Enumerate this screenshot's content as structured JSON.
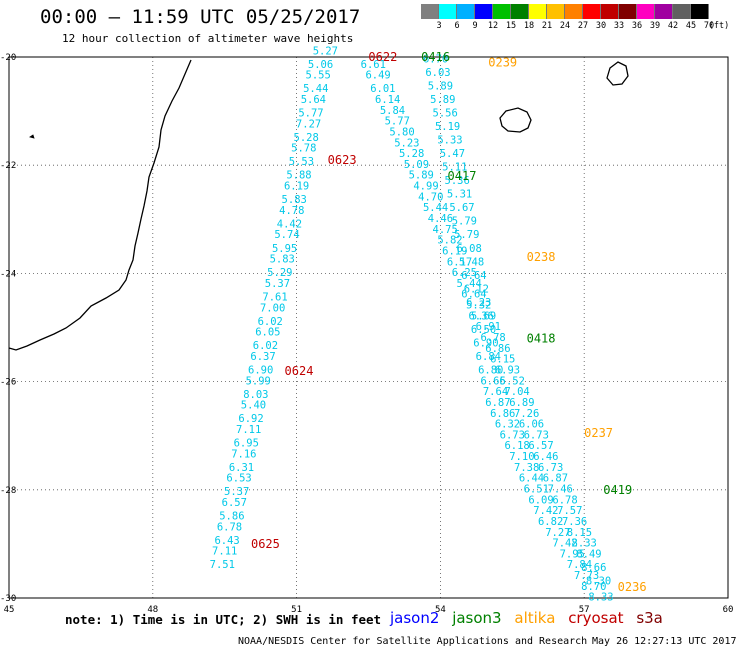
{
  "title": "00:00 – 11:59 UTC 05/25/2017",
  "subtitle": "12 hour collection of altimeter wave heights",
  "legend": {
    "colors": [
      "#808080",
      "#00ffff",
      "#00b0ff",
      "#0000ff",
      "#00c000",
      "#008000",
      "#ffff00",
      "#ffc000",
      "#ff8000",
      "#ff0000",
      "#c00000",
      "#800000",
      "#ff00c0",
      "#a000a0",
      "#606060",
      "#000000"
    ],
    "labels": [
      "3",
      "6",
      "9",
      "12",
      "15",
      "18",
      "21",
      "24",
      "27",
      "30",
      "33",
      "36",
      "39",
      "42",
      "45",
      "70",
      "(ft)"
    ]
  },
  "axes": {
    "lon_ticks": [
      "45",
      "48",
      "51",
      "54",
      "57",
      "60"
    ],
    "lat_ticks": [
      "-20",
      "-22",
      "-24",
      "-26",
      "-28",
      "-30"
    ]
  },
  "colors": {
    "swh_text": "#00c8e8",
    "jason2": "#0000ff",
    "jason3": "#008000",
    "altika": "#ffa000",
    "cryosat": "#c00000",
    "s3a": "#800000",
    "coast": "#000000"
  },
  "tracks": [
    {
      "mission": "cryosat",
      "times": [
        {
          "label": "0622",
          "lon": 52.8,
          "lat": -20.0
        },
        {
          "label": "0623",
          "lon": 51.95,
          "lat": -21.9
        },
        {
          "label": "0624",
          "lon": 51.05,
          "lat": -25.8
        },
        {
          "label": "0625",
          "lon": 50.35,
          "lat": -29.0
        }
      ],
      "points": [
        {
          "lon": 51.6,
          "lat": -19.95,
          "v": "5.27"
        },
        {
          "lon": 51.5,
          "lat": -20.2,
          "v": "5.06"
        },
        {
          "lon": 51.45,
          "lat": -20.4,
          "v": "5.55"
        },
        {
          "lon": 51.4,
          "lat": -20.65,
          "v": "5.44"
        },
        {
          "lon": 51.35,
          "lat": -20.85,
          "v": "5.64"
        },
        {
          "lon": 51.3,
          "lat": -21.1,
          "v": "5.77"
        },
        {
          "lon": 51.25,
          "lat": -21.3,
          "v": "7.27"
        },
        {
          "lon": 51.2,
          "lat": -21.55,
          "v": "5.28"
        },
        {
          "lon": 51.15,
          "lat": -21.75,
          "v": "5.78"
        },
        {
          "lon": 51.1,
          "lat": -22.0,
          "v": "5.53"
        },
        {
          "lon": 51.05,
          "lat": -22.25,
          "v": "5.88"
        },
        {
          "lon": 51.0,
          "lat": -22.45,
          "v": "6.19"
        },
        {
          "lon": 50.95,
          "lat": -22.7,
          "v": "5.83"
        },
        {
          "lon": 50.9,
          "lat": -22.9,
          "v": "4.78"
        },
        {
          "lon": 50.85,
          "lat": -23.15,
          "v": "4.42"
        },
        {
          "lon": 50.8,
          "lat": -23.35,
          "v": "5.74"
        },
        {
          "lon": 50.75,
          "lat": -23.6,
          "v": "5.95"
        },
        {
          "lon": 50.7,
          "lat": -23.8,
          "v": "5.83"
        },
        {
          "lon": 50.65,
          "lat": -24.05,
          "v": "5.29"
        },
        {
          "lon": 50.6,
          "lat": -24.25,
          "v": "5.37"
        },
        {
          "lon": 50.55,
          "lat": -24.5,
          "v": "7.61"
        },
        {
          "lon": 50.5,
          "lat": -24.7,
          "v": "7.00"
        },
        {
          "lon": 50.45,
          "lat": -24.95,
          "v": "6.02"
        },
        {
          "lon": 50.4,
          "lat": -25.15,
          "v": "6.05"
        },
        {
          "lon": 50.35,
          "lat": -25.4,
          "v": "6.02"
        },
        {
          "lon": 50.3,
          "lat": -25.6,
          "v": "6.37"
        },
        {
          "lon": 50.25,
          "lat": -25.85,
          "v": "6.90"
        },
        {
          "lon": 50.2,
          "lat": -26.05,
          "v": "5.99"
        },
        {
          "lon": 50.15,
          "lat": -26.3,
          "v": "8.03"
        },
        {
          "lon": 50.1,
          "lat": -26.5,
          "v": "5.40"
        },
        {
          "lon": 50.05,
          "lat": -26.75,
          "v": "6.92"
        },
        {
          "lon": 50.0,
          "lat": -26.95,
          "v": "7.11"
        },
        {
          "lon": 49.95,
          "lat": -27.2,
          "v": "6.95"
        },
        {
          "lon": 49.9,
          "lat": -27.4,
          "v": "7.16"
        },
        {
          "lon": 49.85,
          "lat": -27.65,
          "v": "6.31"
        },
        {
          "lon": 49.8,
          "lat": -27.85,
          "v": "6.53"
        },
        {
          "lon": 49.75,
          "lat": -28.1,
          "v": "5.37"
        },
        {
          "lon": 49.7,
          "lat": -28.3,
          "v": "6.57"
        },
        {
          "lon": 49.65,
          "lat": -28.55,
          "v": "5.86"
        },
        {
          "lon": 49.6,
          "lat": -28.75,
          "v": "6.78"
        },
        {
          "lon": 49.55,
          "lat": -29.0,
          "v": "6.43"
        },
        {
          "lon": 49.5,
          "lat": -29.2,
          "v": "7.11"
        },
        {
          "lon": 49.45,
          "lat": -29.45,
          "v": "7.51"
        }
      ]
    },
    {
      "mission": "jason3",
      "times": [
        {
          "label": "0416",
          "lon": 53.9,
          "lat": -20.0
        },
        {
          "label": "0417",
          "lon": 54.45,
          "lat": -22.2
        },
        {
          "label": "0418",
          "lon": 56.1,
          "lat": -25.2
        },
        {
          "label": "0419",
          "lon": 57.7,
          "lat": -28.0
        }
      ],
      "points": [
        {
          "lon": 52.6,
          "lat": -20.2,
          "v": "6.61"
        },
        {
          "lon": 52.7,
          "lat": -20.4,
          "v": "6.49"
        },
        {
          "lon": 52.8,
          "lat": -20.65,
          "v": "6.01"
        },
        {
          "lon": 52.9,
          "lat": -20.85,
          "v": "6.14"
        },
        {
          "lon": 53.0,
          "lat": -21.05,
          "v": "5.84"
        },
        {
          "lon": 53.1,
          "lat": -21.25,
          "v": "5.77"
        },
        {
          "lon": 53.2,
          "lat": -21.45,
          "v": "5.80"
        },
        {
          "lon": 53.3,
          "lat": -21.65,
          "v": "5.23"
        },
        {
          "lon": 53.4,
          "lat": -21.85,
          "v": "5.28"
        },
        {
          "lon": 53.5,
          "lat": -22.05,
          "v": "5.09"
        },
        {
          "lon": 53.6,
          "lat": -22.25,
          "v": "5.89"
        },
        {
          "lon": 53.7,
          "lat": -22.45,
          "v": "4.99"
        },
        {
          "lon": 53.8,
          "lat": -22.65,
          "v": "4.70"
        },
        {
          "lon": 53.9,
          "lat": -22.85,
          "v": "5.44"
        },
        {
          "lon": 54.0,
          "lat": -23.05,
          "v": "4.46"
        },
        {
          "lon": 54.1,
          "lat": -23.25,
          "v": "4.75"
        },
        {
          "lon": 54.2,
          "lat": -23.45,
          "v": "5.82"
        },
        {
          "lon": 54.3,
          "lat": -23.65,
          "v": "6.19"
        },
        {
          "lon": 54.4,
          "lat": -23.85,
          "v": "6.17"
        },
        {
          "lon": 54.5,
          "lat": -24.05,
          "v": "6.25"
        },
        {
          "lon": 54.6,
          "lat": -24.25,
          "v": "5.44"
        },
        {
          "lon": 54.7,
          "lat": -24.45,
          "v": "6.64"
        },
        {
          "lon": 54.8,
          "lat": -24.65,
          "v": "5.32"
        },
        {
          "lon": 54.9,
          "lat": -24.85,
          "v": "5.69"
        },
        {
          "lon": 55.0,
          "lat": -25.05,
          "v": "6.91"
        },
        {
          "lon": 55.1,
          "lat": -25.25,
          "v": "6.78"
        },
        {
          "lon": 55.2,
          "lat": -25.45,
          "v": "6.86"
        },
        {
          "lon": 55.3,
          "lat": -25.65,
          "v": "6.15"
        },
        {
          "lon": 55.4,
          "lat": -25.85,
          "v": "6.93"
        },
        {
          "lon": 55.5,
          "lat": -26.05,
          "v": "5.52"
        },
        {
          "lon": 55.6,
          "lat": -26.25,
          "v": "7.04"
        },
        {
          "lon": 55.7,
          "lat": -26.45,
          "v": "6.89"
        },
        {
          "lon": 55.8,
          "lat": -26.65,
          "v": "7.26"
        },
        {
          "lon": 55.9,
          "lat": -26.85,
          "v": "6.06"
        },
        {
          "lon": 56.0,
          "lat": -27.05,
          "v": "6.73"
        },
        {
          "lon": 56.1,
          "lat": -27.25,
          "v": "6.57"
        },
        {
          "lon": 56.2,
          "lat": -27.45,
          "v": "6.46"
        },
        {
          "lon": 56.3,
          "lat": -27.65,
          "v": "6.73"
        },
        {
          "lon": 56.4,
          "lat": -27.85,
          "v": "6.87"
        },
        {
          "lon": 56.5,
          "lat": -28.05,
          "v": "7.46"
        },
        {
          "lon": 56.6,
          "lat": -28.25,
          "v": "6.78"
        },
        {
          "lon": 56.7,
          "lat": -28.45,
          "v": "7.57"
        },
        {
          "lon": 56.8,
          "lat": -28.65,
          "v": "7.36"
        },
        {
          "lon": 56.9,
          "lat": -28.85,
          "v": "8.15"
        },
        {
          "lon": 57.0,
          "lat": -29.05,
          "v": "8.33"
        },
        {
          "lon": 57.1,
          "lat": -29.25,
          "v": "8.49"
        },
        {
          "lon": 57.2,
          "lat": -29.5,
          "v": "8.66"
        },
        {
          "lon": 57.3,
          "lat": -29.75,
          "v": "8.30"
        }
      ]
    },
    {
      "mission": "altika",
      "times": [
        {
          "label": "0239",
          "lon": 55.3,
          "lat": -20.1
        },
        {
          "label": "0238",
          "lon": 56.1,
          "lat": -23.7
        },
        {
          "label": "0237",
          "lon": 57.3,
          "lat": -26.95
        },
        {
          "label": "0236",
          "lon": 58.0,
          "lat": -29.8
        }
      ],
      "points": [
        {
          "lon": 53.9,
          "lat": -20.1,
          "v": "6.70"
        },
        {
          "lon": 53.95,
          "lat": -20.35,
          "v": "6.03"
        },
        {
          "lon": 54.0,
          "lat": -20.6,
          "v": "5.89"
        },
        {
          "lon": 54.05,
          "lat": -20.85,
          "v": "5.89"
        },
        {
          "lon": 54.1,
          "lat": -21.1,
          "v": "5.56"
        },
        {
          "lon": 54.15,
          "lat": -21.35,
          "v": "5.19"
        },
        {
          "lon": 54.2,
          "lat": -21.6,
          "v": "5.33"
        },
        {
          "lon": 54.25,
          "lat": -21.85,
          "v": "5.47"
        },
        {
          "lon": 54.3,
          "lat": -22.1,
          "v": "5.11"
        },
        {
          "lon": 54.35,
          "lat": -22.35,
          "v": "5.36"
        },
        {
          "lon": 54.4,
          "lat": -22.6,
          "v": "5.31"
        },
        {
          "lon": 54.45,
          "lat": -22.85,
          "v": "5.67"
        },
        {
          "lon": 54.5,
          "lat": -23.1,
          "v": "5.79"
        },
        {
          "lon": 54.55,
          "lat": -23.35,
          "v": "5.79"
        },
        {
          "lon": 54.6,
          "lat": -23.6,
          "v": "6.08"
        },
        {
          "lon": 54.65,
          "lat": -23.85,
          "v": "5.48"
        },
        {
          "lon": 54.7,
          "lat": -24.1,
          "v": "6.64"
        },
        {
          "lon": 54.75,
          "lat": -24.35,
          "v": "6.12"
        },
        {
          "lon": 54.8,
          "lat": -24.6,
          "v": "6.23"
        },
        {
          "lon": 54.85,
          "lat": -24.85,
          "v": "6.36"
        },
        {
          "lon": 54.9,
          "lat": -25.1,
          "v": "6.50"
        },
        {
          "lon": 54.95,
          "lat": -25.35,
          "v": "6.90"
        },
        {
          "lon": 55.0,
          "lat": -25.6,
          "v": "6.84"
        },
        {
          "lon": 55.05,
          "lat": -25.85,
          "v": "6.80"
        },
        {
          "lon": 55.1,
          "lat": -26.05,
          "v": "6.66"
        },
        {
          "lon": 55.15,
          "lat": -26.25,
          "v": "7.64"
        },
        {
          "lon": 55.2,
          "lat": -26.45,
          "v": "6.87"
        },
        {
          "lon": 55.3,
          "lat": -26.65,
          "v": "6.86"
        },
        {
          "lon": 55.4,
          "lat": -26.85,
          "v": "6.32"
        },
        {
          "lon": 55.5,
          "lat": -27.05,
          "v": "6.73"
        },
        {
          "lon": 55.6,
          "lat": -27.25,
          "v": "6.18"
        },
        {
          "lon": 55.7,
          "lat": -27.45,
          "v": "7.10"
        },
        {
          "lon": 55.8,
          "lat": -27.65,
          "v": "7.38"
        },
        {
          "lon": 55.9,
          "lat": -27.85,
          "v": "6.44"
        },
        {
          "lon": 56.0,
          "lat": -28.05,
          "v": "6.51"
        },
        {
          "lon": 56.1,
          "lat": -28.25,
          "v": "6.09"
        },
        {
          "lon": 56.2,
          "lat": -28.45,
          "v": "7.42"
        },
        {
          "lon": 56.3,
          "lat": -28.65,
          "v": "6.82"
        },
        {
          "lon": 56.45,
          "lat": -28.85,
          "v": "7.27"
        },
        {
          "lon": 56.6,
          "lat": -29.05,
          "v": "7.42"
        },
        {
          "lon": 56.75,
          "lat": -29.25,
          "v": "7.95"
        },
        {
          "lon": 56.9,
          "lat": -29.45,
          "v": "7.84"
        },
        {
          "lon": 57.05,
          "lat": -29.65,
          "v": "7.73"
        },
        {
          "lon": 57.2,
          "lat": -29.85,
          "v": "8.70"
        },
        {
          "lon": 57.35,
          "lat": -30.05,
          "v": "8.33"
        }
      ]
    }
  ],
  "note": "note: 1) Time is in UTC; 2) SWH is in feet",
  "missions": {
    "jason2": "jason2",
    "jason3": "jason3",
    "altika": "altika",
    "cryosat": "cryosat",
    "s3a": "s3a"
  },
  "credit": "NOAA/NESDIS Center for Satellite Applications and Research",
  "timestamp": "May 26 12:27:13 UTC 2017"
}
